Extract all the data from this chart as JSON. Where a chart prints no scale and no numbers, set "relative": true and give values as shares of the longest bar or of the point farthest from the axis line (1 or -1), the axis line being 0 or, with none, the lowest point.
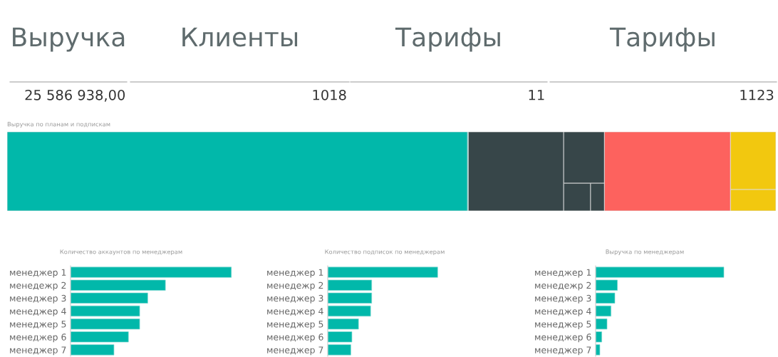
{
  "chart_data": [
    {
      "type": "other",
      "title": "Выручка",
      "annotations": [
        "25 586 938,00"
      ]
    },
    {
      "type": "other",
      "title": "Клиенты",
      "annotations": [
        "1018"
      ]
    },
    {
      "type": "other",
      "title": "Тарифы",
      "annotations": [
        "11"
      ]
    },
    {
      "type": "other",
      "title": "Тарифы",
      "annotations": [
        "1123"
      ]
    },
    {
      "type": "other",
      "title": "Выручка по планам и подпискам"
    },
    {
      "type": "bar",
      "orientation": "horizontal",
      "relative": true,
      "title": "Количество аккаунтов по менеджерам",
      "color": "#01b8aa",
      "categories": [
        "менеджер 1",
        "менедежр 2",
        "менеджер 3",
        "менеджер 4",
        "менеджер 5",
        "менеджер 6",
        "менеджер 7"
      ],
      "values": [
        1,
        0.59,
        0.48,
        0.43,
        0.43,
        0.36,
        0.27
      ]
    },
    {
      "type": "bar",
      "orientation": "horizontal",
      "relative": true,
      "title": "Количество подписок по менеджерам",
      "color": "#01b8aa",
      "categories": [
        "менеджер 1",
        "менедежр 2",
        "менеджер 3",
        "менеджер 4",
        "менеджер 5",
        "менеджер 6",
        "менеджер 7"
      ],
      "values": [
        1,
        0.4,
        0.4,
        0.39,
        0.28,
        0.22,
        0.21
      ]
    },
    {
      "type": "bar",
      "orientation": "horizontal",
      "relative": true,
      "title": "Выручка по менеджерам",
      "color": "#01b8aa",
      "categories": [
        "менеджер 1",
        "менедежр 2",
        "менеджер 3",
        "менеджер 4",
        "менеджер 5",
        "менеджер 6",
        "менеджер 7"
      ],
      "values": [
        1,
        0.17,
        0.15,
        0.12,
        0.089,
        0.048,
        0.033
      ]
    }
  ]
}
